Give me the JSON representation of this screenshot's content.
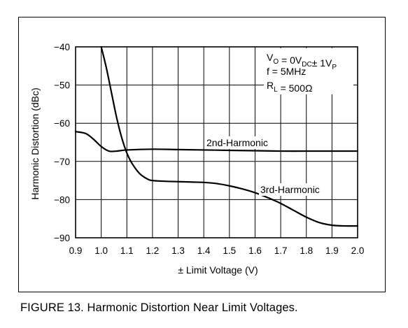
{
  "caption": "FIGURE 13. Harmonic Distortion Near Limit Voltages.",
  "chart_data": {
    "type": "line",
    "xlabel": "± Limit Voltage (V)",
    "ylabel": "Harmonic Distortion (dBc)",
    "xlim": [
      0.9,
      2.0
    ],
    "ylim": [
      -90,
      -40
    ],
    "x_ticks": [
      "0.9",
      "1.0",
      "1.1",
      "1.2",
      "1.3",
      "1.4",
      "1.5",
      "1.6",
      "1.7",
      "1.8",
      "1.9",
      "2.0"
    ],
    "y_ticks": [
      "−40",
      "−50",
      "−60",
      "−70",
      "−80",
      "−90"
    ],
    "grid": true,
    "series": [
      {
        "name": "2nd-Harmonic",
        "x": [
          0.9,
          0.94,
          0.97,
          1.0,
          1.03,
          1.06,
          1.1,
          1.2,
          1.3,
          1.4,
          1.5,
          1.6,
          1.7,
          1.8,
          1.9,
          2.0
        ],
        "y": [
          -62.2,
          -62.7,
          -64.2,
          -66.1,
          -67.3,
          -67.3,
          -67.0,
          -66.8,
          -66.9,
          -67.0,
          -67.1,
          -67.2,
          -67.3,
          -67.3,
          -67.3,
          -67.3
        ]
      },
      {
        "name": "3rd-Harmonic",
        "x": [
          1.0,
          1.02,
          1.04,
          1.06,
          1.08,
          1.1,
          1.12,
          1.15,
          1.18,
          1.2,
          1.25,
          1.3,
          1.35,
          1.4,
          1.45,
          1.5,
          1.55,
          1.6,
          1.65,
          1.7,
          1.75,
          1.8,
          1.85,
          1.9,
          1.95,
          2.0
        ],
        "y": [
          -40.0,
          -45.5,
          -52.0,
          -58.5,
          -63.8,
          -67.8,
          -70.5,
          -73.2,
          -74.6,
          -75.0,
          -75.2,
          -75.3,
          -75.4,
          -75.5,
          -75.8,
          -76.4,
          -77.2,
          -78.2,
          -79.5,
          -81.0,
          -82.8,
          -84.6,
          -86.0,
          -86.7,
          -86.9,
          -86.9
        ]
      }
    ],
    "annotations": {
      "series_labels": [
        "2nd-Harmonic",
        "3rd-Harmonic"
      ],
      "conditions": [
        {
          "parts": [
            [
              "V",
              "n"
            ],
            [
              "O",
              "sub"
            ],
            [
              " = 0V",
              "n"
            ],
            [
              "DC",
              "sub"
            ],
            [
              "± 1V",
              "n"
            ],
            [
              "P",
              "sub"
            ]
          ]
        },
        {
          "parts": [
            [
              "f = 5MHz",
              "n"
            ]
          ]
        },
        {
          "parts": [
            [
              "R",
              "n"
            ],
            [
              "L",
              "sub"
            ],
            [
              " = 500Ω",
              "n"
            ]
          ]
        }
      ]
    }
  }
}
